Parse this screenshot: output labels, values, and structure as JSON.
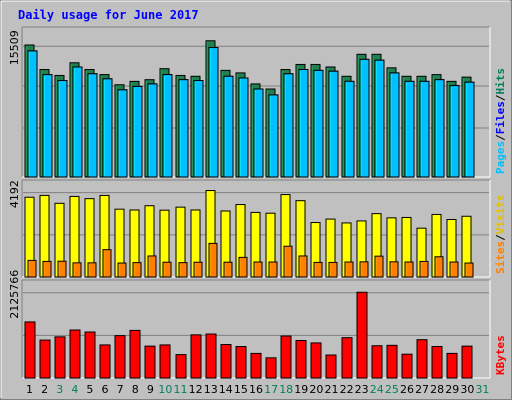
{
  "chart_data": {
    "type": "bar",
    "title": "Daily usage for June 2017",
    "categories": [
      "1",
      "2",
      "3",
      "4",
      "5",
      "6",
      "7",
      "8",
      "9",
      "10",
      "11",
      "12",
      "13",
      "14",
      "15",
      "16",
      "17",
      "18",
      "19",
      "20",
      "21",
      "22",
      "23",
      "24",
      "25",
      "26",
      "27",
      "28",
      "29",
      "30",
      "31"
    ],
    "weekend_days": [
      "3",
      "4",
      "10",
      "11",
      "17",
      "18",
      "24",
      "25",
      "31"
    ],
    "panels": [
      {
        "name": "hits-files-pages",
        "ymax_label": "15509",
        "ymax": 15509,
        "legend": [
          {
            "text": "Hits",
            "color": "#00805c"
          },
          {
            "text": "Files",
            "color": "#0000ff"
          },
          {
            "text": "Pages",
            "color": "#00c0ff"
          }
        ],
        "series": [
          {
            "name": "Hits",
            "color": "#208050",
            "values": [
              15600,
              12700,
              12000,
              13500,
              12700,
              12100,
              10900,
              11300,
              11500,
              12800,
              12000,
              11900,
              16100,
              12600,
              12300,
              11000,
              10400,
              12700,
              13300,
              13300,
              13000,
              11900,
              14500,
              14500,
              12900,
              11900,
              11900,
              12100,
              11300,
              11800,
              null
            ]
          },
          {
            "name": "Files",
            "color": "#1030c0",
            "values": [
              14900,
              12100,
              11400,
              13000,
              12200,
              11600,
              10300,
              10700,
              11000,
              12100,
              11500,
              11400,
              15300,
              11900,
              11700,
              10400,
              9700,
              12200,
              12700,
              12600,
              12500,
              11300,
              13900,
              13800,
              12300,
              11300,
              11300,
              11500,
              10800,
              11200,
              null
            ]
          },
          {
            "name": "Pages",
            "color": "#00c0ff",
            "values": [
              14900,
              12100,
              11400,
              13000,
              12200,
              11600,
              10300,
              10700,
              11000,
              12100,
              11500,
              11400,
              15300,
              11900,
              11700,
              10400,
              9700,
              12200,
              12700,
              12600,
              12500,
              11300,
              13900,
              13800,
              12300,
              11300,
              11300,
              11500,
              10800,
              11200,
              null
            ]
          }
        ]
      },
      {
        "name": "visits-sites",
        "ymax_label": "4192",
        "ymax": 4192,
        "legend": [
          {
            "text": "Visits",
            "color": "#e0c000"
          },
          {
            "text": "Sites",
            "color": "#ff8000"
          }
        ],
        "series": [
          {
            "name": "Visits",
            "color": "#ffff00",
            "values": [
              3940,
              4030,
              3640,
              3980,
              3870,
              4030,
              3350,
              3310,
              3520,
              3300,
              3450,
              3310,
              4270,
              3260,
              3580,
              3190,
              3150,
              4070,
              3770,
              2690,
              2860,
              2670,
              2770,
              3130,
              2920,
              2940,
              2410,
              3090,
              2840,
              3000,
              null
            ]
          },
          {
            "name": "Sites",
            "color": "#ff8000",
            "values": [
              820,
              770,
              780,
              700,
              700,
              1350,
              690,
              710,
              1040,
              730,
              710,
              730,
              1660,
              730,
              970,
              740,
              740,
              1520,
              1040,
              720,
              720,
              740,
              750,
              1030,
              750,
              740,
              770,
              1000,
              740,
              690,
              null
            ]
          }
        ]
      },
      {
        "name": "kbytes",
        "ymax_label": "2125766",
        "ymax": 2125766,
        "legend": [
          {
            "text": "KBytes",
            "color": "#ff0000"
          }
        ],
        "series": [
          {
            "name": "KBytes",
            "color": "#ff0000",
            "values": [
              1390000,
              940000,
              1020000,
              1190000,
              1140000,
              820000,
              1050000,
              1180000,
              790000,
              820000,
              580000,
              1070000,
              1090000,
              830000,
              780000,
              610000,
              500000,
              1040000,
              930000,
              870000,
              570000,
              1000000,
              2125766,
              800000,
              810000,
              590000,
              950000,
              780000,
              610000,
              790000,
              null
            ]
          }
        ]
      }
    ]
  },
  "colors": {
    "background": "#c0c0c0",
    "plot": "#c0c0c0",
    "title": "#0000ff",
    "weekday_label": "#000000",
    "weekend_label": "#00805c"
  }
}
